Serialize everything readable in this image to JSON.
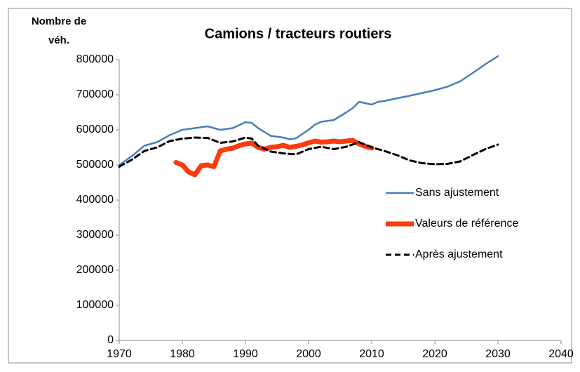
{
  "chart_data": {
    "type": "line",
    "title": "Camions / tracteurs routiers",
    "ylabel": [
      "Nombre de",
      "véh."
    ],
    "xlim": [
      1970,
      2040
    ],
    "xticks": [
      1970,
      1980,
      1990,
      2000,
      2010,
      2020,
      2030,
      2040
    ],
    "ylim": [
      0,
      800000
    ],
    "yticks": [
      0,
      100000,
      200000,
      300000,
      400000,
      500000,
      600000,
      700000,
      800000
    ],
    "grid": false,
    "legend": "right",
    "series": [
      {
        "name": "Sans ajustement",
        "color": "#4a7ebb",
        "style": "solid",
        "x": [
          1970,
          1972,
          1974,
          1975,
          1976,
          1978,
          1980,
          1982,
          1984,
          1986,
          1988,
          1990,
          1991,
          1992,
          1994,
          1996,
          1997,
          1998,
          2000,
          2001,
          2002,
          2004,
          2006,
          2007,
          2008,
          2010,
          2011,
          2012,
          2014,
          2016,
          2018,
          2020,
          2022,
          2024,
          2026,
          2028,
          2030
        ],
        "values": [
          500000,
          525000,
          555000,
          560000,
          565000,
          585000,
          600000,
          605000,
          610000,
          600000,
          605000,
          622000,
          620000,
          605000,
          583000,
          578000,
          573000,
          576000,
          600000,
          615000,
          623000,
          628000,
          650000,
          662000,
          680000,
          672000,
          680000,
          682000,
          690000,
          697000,
          705000,
          713000,
          723000,
          738000,
          762000,
          787000,
          810000
        ]
      },
      {
        "name": "Valeurs de référence",
        "color": "#fa3c0f",
        "style": "thick",
        "x": [
          1979,
          1980,
          1981,
          1982,
          1983,
          1984,
          1985,
          1986,
          1987,
          1988,
          1989,
          1990,
          1991,
          1992,
          1993,
          1994,
          1995,
          1996,
          1997,
          1998,
          1999,
          2000,
          2001,
          2002,
          2003,
          2004,
          2005,
          2006,
          2007,
          2008,
          2009,
          2010
        ],
        "values": [
          507000,
          500000,
          480000,
          472000,
          498000,
          500000,
          495000,
          540000,
          545000,
          548000,
          555000,
          560000,
          562000,
          550000,
          545000,
          550000,
          552000,
          556000,
          550000,
          553000,
          557000,
          563000,
          568000,
          565000,
          566000,
          568000,
          566000,
          568000,
          570000,
          560000,
          553000,
          548000
        ]
      },
      {
        "name": "Après ajustement",
        "color": "#000000",
        "style": "dashed",
        "x": [
          1970,
          1972,
          1974,
          1976,
          1978,
          1980,
          1982,
          1984,
          1986,
          1988,
          1990,
          1991,
          1992,
          1994,
          1996,
          1998,
          2000,
          2002,
          2004,
          2006,
          2008,
          2010,
          2012,
          2014,
          2016,
          2018,
          2020,
          2022,
          2024,
          2026,
          2028,
          2030
        ],
        "values": [
          495000,
          515000,
          540000,
          550000,
          568000,
          575000,
          578000,
          577000,
          563000,
          567000,
          578000,
          575000,
          555000,
          538000,
          533000,
          530000,
          545000,
          552000,
          545000,
          552000,
          565000,
          550000,
          540000,
          528000,
          513000,
          505000,
          502000,
          503000,
          510000,
          528000,
          545000,
          558000
        ]
      }
    ]
  }
}
